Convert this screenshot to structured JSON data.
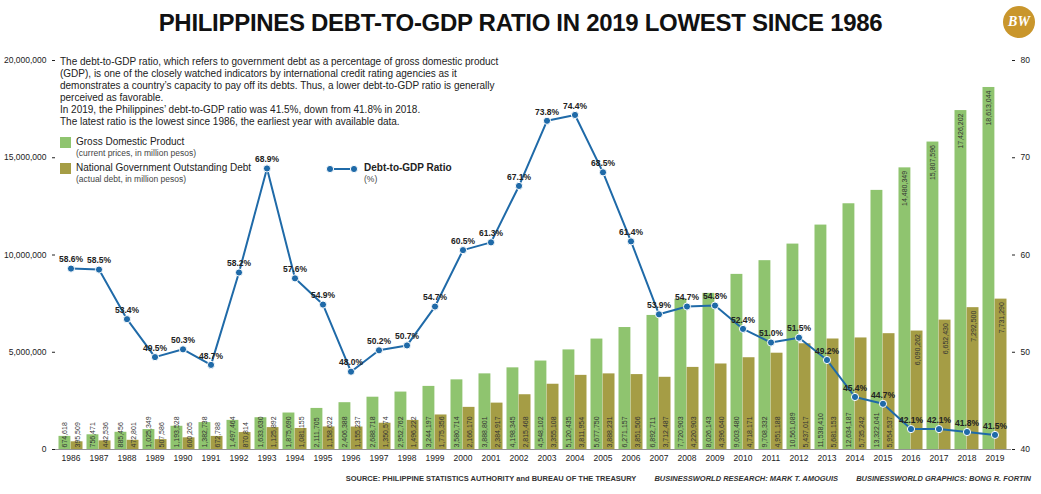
{
  "chart_data": {
    "type": "bar",
    "title": "PHILIPPINES DEBT-TO-GDP RATIO IN 2019 LOWEST SINCE 1986",
    "subtitle": [
      "The debt-to-GDP ratio, which refers to government debt as a percentage of gross domestic product (GDP), is one of the closely watched indicators by international credit rating agencies as it demonstrates a country’s capacity to pay off its debts. Thus, a lower debt-to-GDP ratio is generally perceived as favorable.",
      "In 2019, the Philippines’ debt-to-GDP ratio was 41.5%, down from 41.8% in 2018.",
      "The latest ratio is the lowest since 1986, the earliest year with available data."
    ],
    "logo": "BW",
    "source": "SOURCE: PHILIPPINE STATISTICS AUTHORITY and BUREAU OF THE TREASURY",
    "credits": [
      "BUSINESSWORLD RESEARCH: MARK T. AMOGUIS",
      "BUSINESSWORLD GRAPHICS: BONG R. FORTIN"
    ],
    "categories": [
      "1986",
      "1987",
      "1988",
      "1989",
      "1990",
      "1991",
      "1992",
      "1993",
      "1994",
      "1995",
      "1996",
      "1997",
      "1998",
      "1999",
      "2000",
      "2001",
      "2002",
      "2003",
      "2004",
      "2005",
      "2006",
      "2007",
      "2008",
      "2009",
      "2010",
      "2011",
      "2012",
      "2013",
      "2014",
      "2015",
      "2016",
      "2017",
      "2018",
      "2019"
    ],
    "series": [
      {
        "name": "Gross Domestic Product",
        "note": "(current prices, in million pesos)",
        "type": "bar",
        "color": "#8fc46f",
        "values": [
          674618,
          756471,
          885456,
          1025349,
          1193528,
          1382738,
          1497464,
          1633630,
          1875690,
          2111705,
          2406388,
          2688718,
          2952762,
          3244197,
          3580714,
          3888801,
          4198345,
          4548102,
          5120435,
          5677750,
          6271157,
          6892711,
          7720903,
          8026143,
          9003480,
          9708332,
          10561089,
          11538410,
          12634187,
          13322041,
          14480349,
          15807596,
          17426202,
          18613044
        ],
        "value_labels": [
          "674,618",
          "756,471",
          "885,456",
          "1,025,349",
          "1,193,528",
          "1,382,738",
          "1,497,464",
          "1,633,630",
          "1,875,690",
          "2,111,705",
          "2,406,388",
          "2,688,718",
          "2,952,762",
          "3,244,197",
          "3,580,714",
          "3,888,801",
          "4,198,345",
          "4,548,102",
          "5,120,435",
          "5,677,750",
          "6,271,157",
          "6,892,711",
          "7,720,903",
          "8,026,143",
          "9,003,480",
          "9,708,332",
          "10,561,089",
          "11,538,410",
          "12,634,187",
          "13,322,041",
          "14,480,349",
          "15,807,596",
          "17,426,202",
          "18,613,044"
        ]
      },
      {
        "name": "National Government Outstanding Debt",
        "note": "(actual debt, in million pesos)",
        "type": "bar",
        "color": "#a59d45",
        "values": [
          395509,
          442536,
          472801,
          507586,
          600205,
          672788,
          870814,
          1125892,
          1081155,
          1158622,
          1155237,
          1350574,
          1496222,
          1775356,
          2166170,
          2384917,
          2815468,
          3355108,
          3811954,
          3888231,
          3851506,
          3712487,
          4220903,
          4396640,
          4718171,
          4951188,
          5437017,
          5681153,
          5735242,
          5954537,
          6090262,
          6652430,
          7292500,
          7731290
        ],
        "value_labels": [
          "395,509",
          "442,536",
          "472,801",
          "507,586",
          "600,205",
          "672,788",
          "870,814",
          "1,125,892",
          "1,081,155",
          "1,158,622",
          "1,155,237",
          "1,350,574",
          "1,496,222",
          "1,775,356",
          "2,166,170",
          "2,384,917",
          "2,815,468",
          "3,355,108",
          "3,811,954",
          "3,888,231",
          "3,851,506",
          "3,712,487",
          "4,220,903",
          "4,396,640",
          "4,718,171",
          "4,951,188",
          "5,437,017",
          "5,681,153",
          "5,735,242",
          "5,954,537",
          "6,090,262",
          "6,652,430",
          "7,292,500",
          "7,731,290"
        ]
      },
      {
        "name": "Debt-to-GDP Ratio",
        "note": "(%)",
        "type": "line",
        "axis": "y2",
        "color": "#1f6aa8",
        "marker": "circle",
        "values": [
          58.6,
          58.5,
          53.4,
          49.5,
          50.3,
          48.7,
          58.2,
          68.9,
          57.6,
          54.9,
          48.0,
          50.2,
          50.7,
          54.7,
          60.5,
          61.3,
          67.1,
          73.8,
          74.4,
          68.5,
          61.4,
          53.9,
          54.7,
          54.8,
          52.4,
          51.0,
          51.5,
          49.2,
          45.4,
          44.7,
          42.1,
          42.1,
          41.8,
          41.5
        ],
        "value_labels": [
          "58.6%",
          "58.5%",
          "53.4%",
          "49.5%",
          "50.3%",
          "48.7%",
          "58.2%",
          "68.9%",
          "57.6%",
          "54.9%",
          "48.0%",
          "50.2%",
          "50.7%",
          "54.7%",
          "60.5%",
          "61.3%",
          "67.1%",
          "73.8%",
          "74.4%",
          "68.5%",
          "61.4%",
          "53.9%",
          "54.7%",
          "54.8%",
          "52.4%",
          "51.0%",
          "51.5%",
          "49.2%",
          "45.4%",
          "44.7%",
          "42.1%",
          "42.1%",
          "41.8%",
          "41.5%"
        ]
      }
    ],
    "ylim": [
      0,
      20000000
    ],
    "yticks": [
      0,
      {
        "value": 5000000,
        "label": "5,000,000"
      },
      {
        "value": 10000000,
        "label": "10,000,000"
      },
      {
        "value": 15000000,
        "label": "15,000,000"
      },
      {
        "value": 20000000,
        "label": "20,000,000"
      }
    ],
    "y2lim": [
      40,
      80
    ],
    "y2ticks": [
      40,
      50,
      60,
      70,
      80
    ],
    "data_labels": true,
    "grid": false,
    "legend": "top-left"
  }
}
